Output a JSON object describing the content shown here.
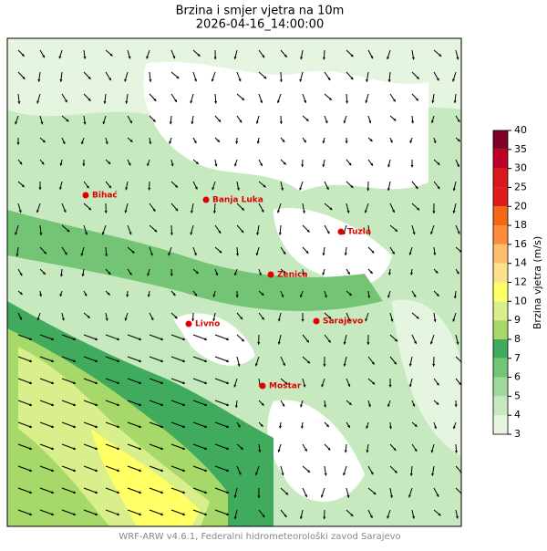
{
  "title": "Brzina i smjer vjetra na 10m",
  "subtitle": "2026-04-16_14:00:00",
  "cities": [
    "Bihać",
    "Banja Luka",
    "Tuzla",
    "Zenica",
    "Livno",
    "Sarajevo",
    "Mostar"
  ],
  "colorbar": {
    "label": "Brzina vjetra (m/s)",
    "levels": [
      3,
      4,
      5,
      6,
      7,
      8,
      9,
      10,
      12,
      14,
      16,
      18,
      20,
      25,
      30,
      35,
      40
    ],
    "colors": [
      "#e5f5e0",
      "#c7e9c0",
      "#a1d99b",
      "#74c476",
      "#41ab5d",
      "#a6d96a",
      "#d9ef8b",
      "#ffff66",
      "#fee08b",
      "#fdbf6f",
      "#fd8d3c",
      "#f16913",
      "#e31a1c",
      "#d7191c",
      "#bd0026",
      "#800026"
    ]
  },
  "footer": "WRF-ARW v4.6.1, Federalni hidrometeorološki zavod Sarajevo"
}
